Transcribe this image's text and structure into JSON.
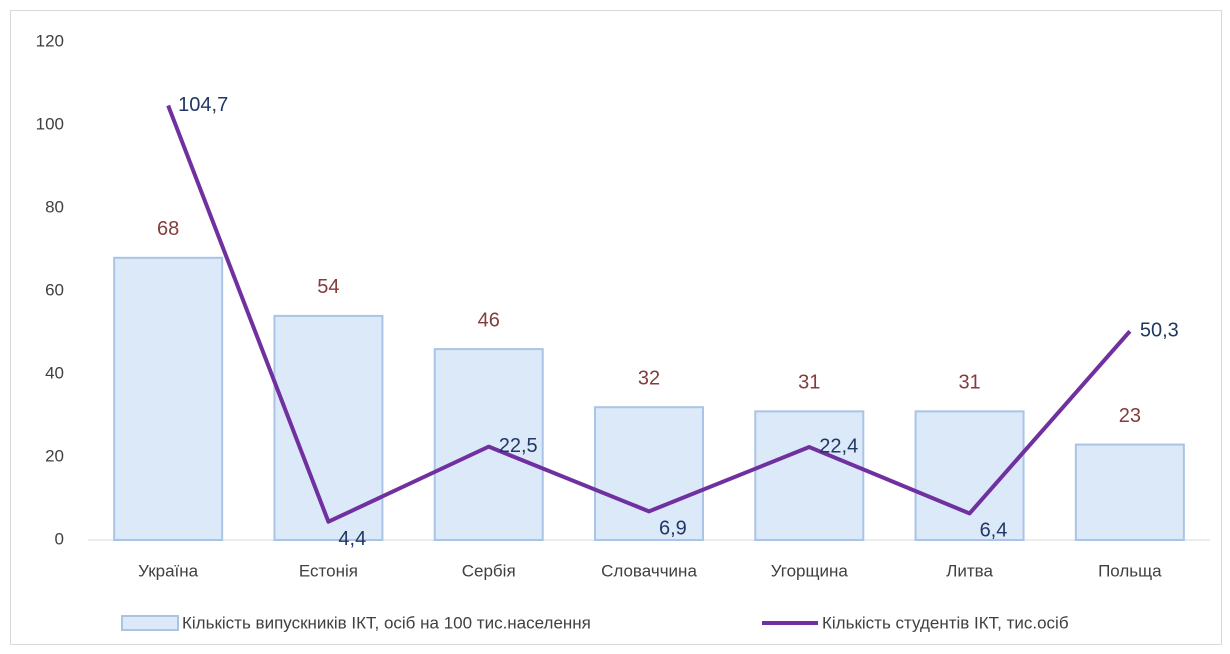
{
  "chart_data": {
    "type": "combo",
    "categories": [
      "Україна",
      "Естонія",
      "Сербія",
      "Словаччина",
      "Угорщина",
      "Литва",
      "Польща"
    ],
    "series": [
      {
        "name": "Кількість випускників ІКТ, осіб на 100  тис.населення",
        "type": "bar",
        "color": "#dce9f8",
        "values": [
          68,
          54,
          46,
          32,
          31,
          31,
          23
        ]
      },
      {
        "name": "Кількість студентів ІКТ, тис.осіб",
        "type": "line",
        "color": "#7030a0",
        "values": [
          104.7,
          4.4,
          22.5,
          6.9,
          22.4,
          6.4,
          50.3
        ],
        "value_labels": [
          "104,7",
          "4,4",
          "22,5",
          "6,9",
          "22,4",
          "6,4",
          "50,3"
        ]
      }
    ],
    "ylim": [
      0,
      120
    ],
    "yticks": [
      0,
      20,
      40,
      60,
      80,
      100,
      120
    ],
    "grid": false,
    "legend": "bottom"
  }
}
